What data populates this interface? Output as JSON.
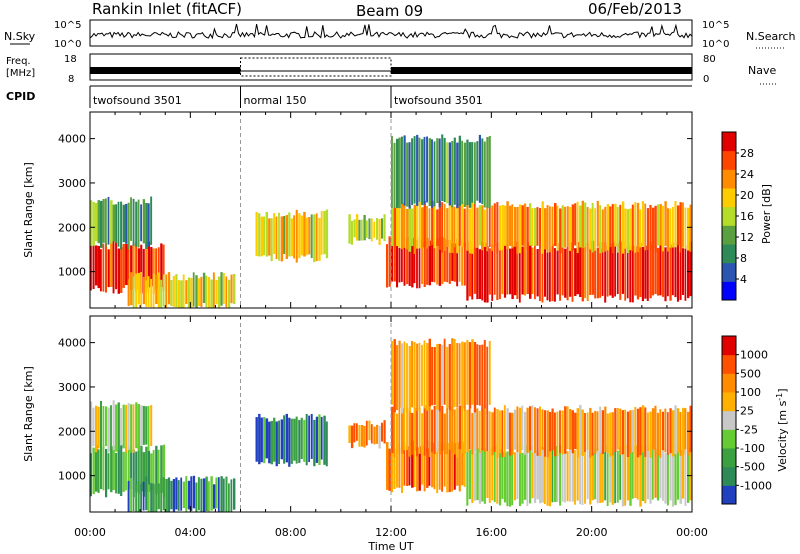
{
  "header": {
    "station": "Rankin Inlet (fitACF)",
    "beam": "Beam 09",
    "date": "06/Feb/2013"
  },
  "top_panels": {
    "nsky_label": "N.Sky",
    "nsky_ticks": [
      "10^5",
      "10^0"
    ],
    "nsearch_label": "N.Search",
    "nsearch_ticks": [
      "10^5",
      "10^0"
    ],
    "freq_label": "Freq.",
    "freq_unit": "[MHz]",
    "freq_ticks": [
      "18",
      "8"
    ],
    "nave_label": "Nave",
    "nave_ticks": [
      "80",
      "0"
    ],
    "cpid_label": "CPID"
  },
  "cpid_segments": [
    {
      "label": "twofsound 3501",
      "start": 0,
      "end": 6
    },
    {
      "label": "normal 150",
      "start": 6,
      "end": 12
    },
    {
      "label": "twofsound 3501",
      "start": 12,
      "end": 24
    }
  ],
  "chart_data": [
    {
      "type": "heatmap",
      "name": "power",
      "xlabel": "Time UT",
      "ylabel": "Slant Range [km]",
      "x_ticks": [
        "00:00",
        "04:00",
        "08:00",
        "12:00",
        "16:00",
        "20:00",
        "00:00"
      ],
      "x_range_hours": [
        0,
        24
      ],
      "y_ticks": [
        1000,
        2000,
        3000,
        4000
      ],
      "ylim": [
        180,
        4600
      ],
      "colorbar_label": "Power [dB]",
      "colorbar_ticks": [
        "28",
        "24",
        "20",
        "16",
        "12",
        "8",
        "4"
      ],
      "colorbar_colors": [
        "#0000ff",
        "#2a55b0",
        "#2e8b57",
        "#5aa040",
        "#b4dc28",
        "#ffcc00",
        "#ff8c00",
        "#ff4500",
        "#e00000"
      ],
      "echo_regions": [
        {
          "t0": 0.0,
          "t1": 3.0,
          "r0": 600,
          "r1": 1600,
          "level": 0.9
        },
        {
          "t0": 0.0,
          "t1": 2.5,
          "r0": 1600,
          "r1": 2600,
          "level": 0.35
        },
        {
          "t0": 1.5,
          "t1": 5.8,
          "r0": 200,
          "r1": 900,
          "level": 0.6
        },
        {
          "t0": 6.6,
          "t1": 9.5,
          "r0": 1300,
          "r1": 2300,
          "level": 0.6
        },
        {
          "t0": 10.3,
          "t1": 11.8,
          "r0": 1700,
          "r1": 2200,
          "level": 0.5
        },
        {
          "t0": 11.8,
          "t1": 15.0,
          "r0": 700,
          "r1": 1700,
          "level": 0.9
        },
        {
          "t0": 15.0,
          "t1": 24.0,
          "r0": 400,
          "r1": 1600,
          "level": 0.9
        },
        {
          "t0": 12.0,
          "t1": 24.0,
          "r0": 1500,
          "r1": 2500,
          "level": 0.7
        },
        {
          "t0": 12.0,
          "t1": 16.0,
          "r0": 2500,
          "r1": 4000,
          "level": 0.3
        }
      ]
    },
    {
      "type": "heatmap",
      "name": "velocity",
      "xlabel": "Time UT",
      "ylabel": "Slant Range [km]",
      "x_ticks": [
        "00:00",
        "04:00",
        "08:00",
        "12:00",
        "16:00",
        "20:00",
        "00:00"
      ],
      "x_range_hours": [
        0,
        24
      ],
      "y_ticks": [
        1000,
        2000,
        3000,
        4000
      ],
      "ylim": [
        180,
        4600
      ],
      "colorbar_label": "Velocity [m s^-1]",
      "colorbar_ticks": [
        "1000",
        "500",
        "100",
        "25",
        "-25",
        "-100",
        "-500",
        "-1000"
      ],
      "colorbar_colors": [
        "#2040c0",
        "#2e8b57",
        "#3aa040",
        "#66cc33",
        "#c8c8c8",
        "#ffb000",
        "#ff8c00",
        "#ff5000",
        "#e00000"
      ],
      "echo_regions": [
        {
          "t0": 0.0,
          "t1": 3.0,
          "r0": 600,
          "r1": 1600,
          "level": 0.25
        },
        {
          "t0": 0.0,
          "t1": 2.5,
          "r0": 1600,
          "r1": 2600,
          "level": 0.45
        },
        {
          "t0": 1.5,
          "t1": 5.8,
          "r0": 200,
          "r1": 900,
          "level": 0.2
        },
        {
          "t0": 6.6,
          "t1": 9.5,
          "r0": 1300,
          "r1": 2300,
          "level": 0.2
        },
        {
          "t0": 10.3,
          "t1": 11.8,
          "r0": 1700,
          "r1": 2200,
          "level": 0.7
        },
        {
          "t0": 11.8,
          "t1": 15.0,
          "r0": 700,
          "r1": 1700,
          "level": 0.75
        },
        {
          "t0": 15.0,
          "t1": 24.0,
          "r0": 400,
          "r1": 1600,
          "level": 0.5
        },
        {
          "t0": 12.0,
          "t1": 24.0,
          "r0": 1500,
          "r1": 2500,
          "level": 0.7
        },
        {
          "t0": 12.0,
          "t1": 16.0,
          "r0": 2500,
          "r1": 4000,
          "level": 0.7
        }
      ]
    }
  ],
  "axis_titles": {
    "power_colorbar_title": "Power [dB]",
    "velocity_colorbar_title": "Velocity [m s",
    "velocity_colorbar_exp": "-1",
    "velocity_colorbar_close": "]"
  }
}
